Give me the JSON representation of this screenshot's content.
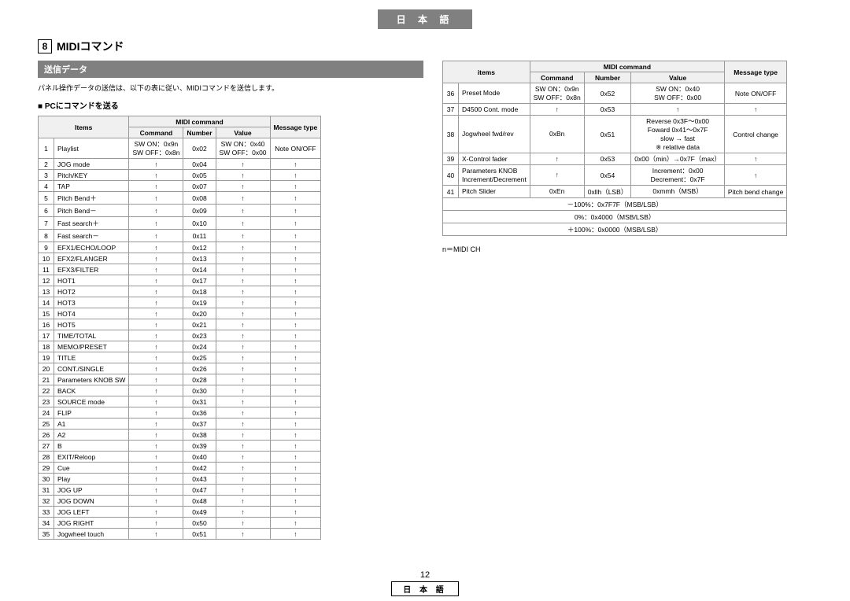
{
  "lang_banner": "日 本 語",
  "section_num": "8",
  "section_title": "MIDIコマンド",
  "sub_bar": "送信データ",
  "intro": "パネル操作データの送信は、以下の表に従い、MIDIコマンドを送信します。",
  "sub_heading": "■ PCにコマンドを送る",
  "headers": {
    "items": "Items",
    "items_r": "items",
    "midi_command": "MIDI command",
    "command": "Command",
    "number": "Number",
    "value": "Value",
    "message_type": "Message type"
  },
  "left_first_row": {
    "num": "1",
    "item": "Playlist",
    "command": "SW ON：0x9n\nSW OFF：0x8n",
    "number": "0x02",
    "value": "SW ON：0x40\nSW OFF：0x00",
    "msg": "Note ON/OFF"
  },
  "left_rows": [
    {
      "n": "2",
      "i": "JOG mode",
      "num": "0x04"
    },
    {
      "n": "3",
      "i": "Pitch/KEY",
      "num": "0x05"
    },
    {
      "n": "4",
      "i": "TAP",
      "num": "0x07"
    },
    {
      "n": "5",
      "i": "Pitch Bend＋",
      "num": "0x08"
    },
    {
      "n": "6",
      "i": "Pitch Bend－",
      "num": "0x09"
    },
    {
      "n": "7",
      "i": "Fast search＋",
      "num": "0x10"
    },
    {
      "n": "8",
      "i": "Fast search－",
      "num": "0x11"
    },
    {
      "n": "9",
      "i": "EFX1/ECHO/LOOP",
      "num": "0x12"
    },
    {
      "n": "10",
      "i": "EFX2/FLANGER",
      "num": "0x13"
    },
    {
      "n": "11",
      "i": "EFX3/FILTER",
      "num": "0x14"
    },
    {
      "n": "12",
      "i": "HOT1",
      "num": "0x17"
    },
    {
      "n": "13",
      "i": "HOT2",
      "num": "0x18"
    },
    {
      "n": "14",
      "i": "HOT3",
      "num": "0x19"
    },
    {
      "n": "15",
      "i": "HOT4",
      "num": "0x20"
    },
    {
      "n": "16",
      "i": "HOT5",
      "num": "0x21"
    },
    {
      "n": "17",
      "i": "TIME/TOTAL",
      "num": "0x23"
    },
    {
      "n": "18",
      "i": "MEMO/PRESET",
      "num": "0x24"
    },
    {
      "n": "19",
      "i": "TITLE",
      "num": "0x25"
    },
    {
      "n": "20",
      "i": "CONT./SINGLE",
      "num": "0x26"
    },
    {
      "n": "21",
      "i": "Parameters KNOB SW",
      "num": "0x28"
    },
    {
      "n": "22",
      "i": "BACK",
      "num": "0x30"
    },
    {
      "n": "23",
      "i": "SOURCE mode",
      "num": "0x31"
    },
    {
      "n": "24",
      "i": "FLIP",
      "num": "0x36"
    },
    {
      "n": "25",
      "i": "A1",
      "num": "0x37"
    },
    {
      "n": "26",
      "i": "A2",
      "num": "0x38"
    },
    {
      "n": "27",
      "i": "B",
      "num": "0x39"
    },
    {
      "n": "28",
      "i": "EXIT/Reloop",
      "num": "0x40"
    },
    {
      "n": "29",
      "i": "Cue",
      "num": "0x42"
    },
    {
      "n": "30",
      "i": "Play",
      "num": "0x43"
    },
    {
      "n": "31",
      "i": "JOG UP",
      "num": "0x47"
    },
    {
      "n": "32",
      "i": "JOG DOWN",
      "num": "0x48"
    },
    {
      "n": "33",
      "i": "JOG LEFT",
      "num": "0x49"
    },
    {
      "n": "34",
      "i": "JOG RIGHT",
      "num": "0x50"
    },
    {
      "n": "35",
      "i": "Jogwheel touch",
      "num": "0x51"
    }
  ],
  "right_rows": [
    {
      "n": "36",
      "i": "Preset Mode",
      "c": "SW ON：0x9n\nSW OFF：0x8n",
      "num": "0x52",
      "v": "SW ON：0x40\nSW OFF：0x00",
      "m": "Note ON/OFF"
    },
    {
      "n": "37",
      "i": "D4500 Cont. mode",
      "c": "↑",
      "num": "0x53",
      "v": "↑",
      "m": "↑"
    },
    {
      "n": "38",
      "i": "Jogwheel fwd/rev",
      "c": "0xBn",
      "num": "0x51",
      "v": "Reverse 0x3F～0x00\nFoward 0x41～0x7F\nslow → fast\n※ relative data",
      "m": "Control change"
    },
    {
      "n": "39",
      "i": "X-Control fader",
      "c": "↑",
      "num": "0x53",
      "v": "0x00（min）→0x7F（max）",
      "m": "↑"
    },
    {
      "n": "40",
      "i": "Parameters KNOB\nIncrement/Decrement",
      "c": "↑",
      "num": "0x54",
      "v": "Increment：0x00\nDecrement：0x7F",
      "m": "↑"
    },
    {
      "n": "41",
      "i": "Pitch Slider",
      "c": "0xEn",
      "num": "0xllh（LSB）",
      "v": "0xmmh（MSB）",
      "m": "Pitch bend change"
    }
  ],
  "right_extra": [
    "－100%：0x7F7F（MSB/LSB）",
    "0%：0x4000（MSB/LSB）",
    "＋100%：0x0000（MSB/LSB）"
  ],
  "note": "n＝MIDI CH",
  "ditto": "↑",
  "page_num": "12",
  "footer_lang": "日 本 語",
  "colors": {
    "banner_bg": "#808080",
    "header_bg": "#f0f0f0",
    "border": "#999999"
  }
}
